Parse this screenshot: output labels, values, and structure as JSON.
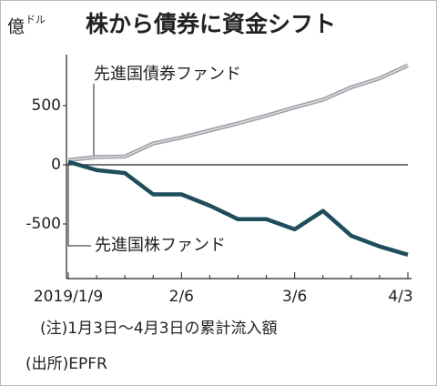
{
  "chart_data": {
    "type": "line",
    "title": "株から債券に資金シフト",
    "y_unit": "億",
    "y_unit_sub": "ドル",
    "categories": [
      "2019/1/9",
      null,
      null,
      null,
      "2/6",
      null,
      null,
      null,
      "3/6",
      null,
      null,
      null,
      "4/3"
    ],
    "series": [
      {
        "name": "先進国債券ファンド",
        "color": "#a2a2aa",
        "values": [
          40,
          65,
          70,
          180,
          230,
          290,
          350,
          415,
          485,
          550,
          655,
          730,
          840
        ]
      },
      {
        "name": "先進国株ファンド",
        "color": "#1e4d5c",
        "values": [
          25,
          -45,
          -70,
          -250,
          -250,
          -345,
          -460,
          -460,
          -545,
          -390,
          -600,
          -690,
          -760
        ]
      }
    ],
    "ylim": [
      -900,
      900
    ],
    "yticks": [
      500,
      0,
      -500
    ],
    "grid": false,
    "notes": [
      "(注)1月3日～4月3日の累計流入額",
      "(出所)EPFR"
    ]
  }
}
